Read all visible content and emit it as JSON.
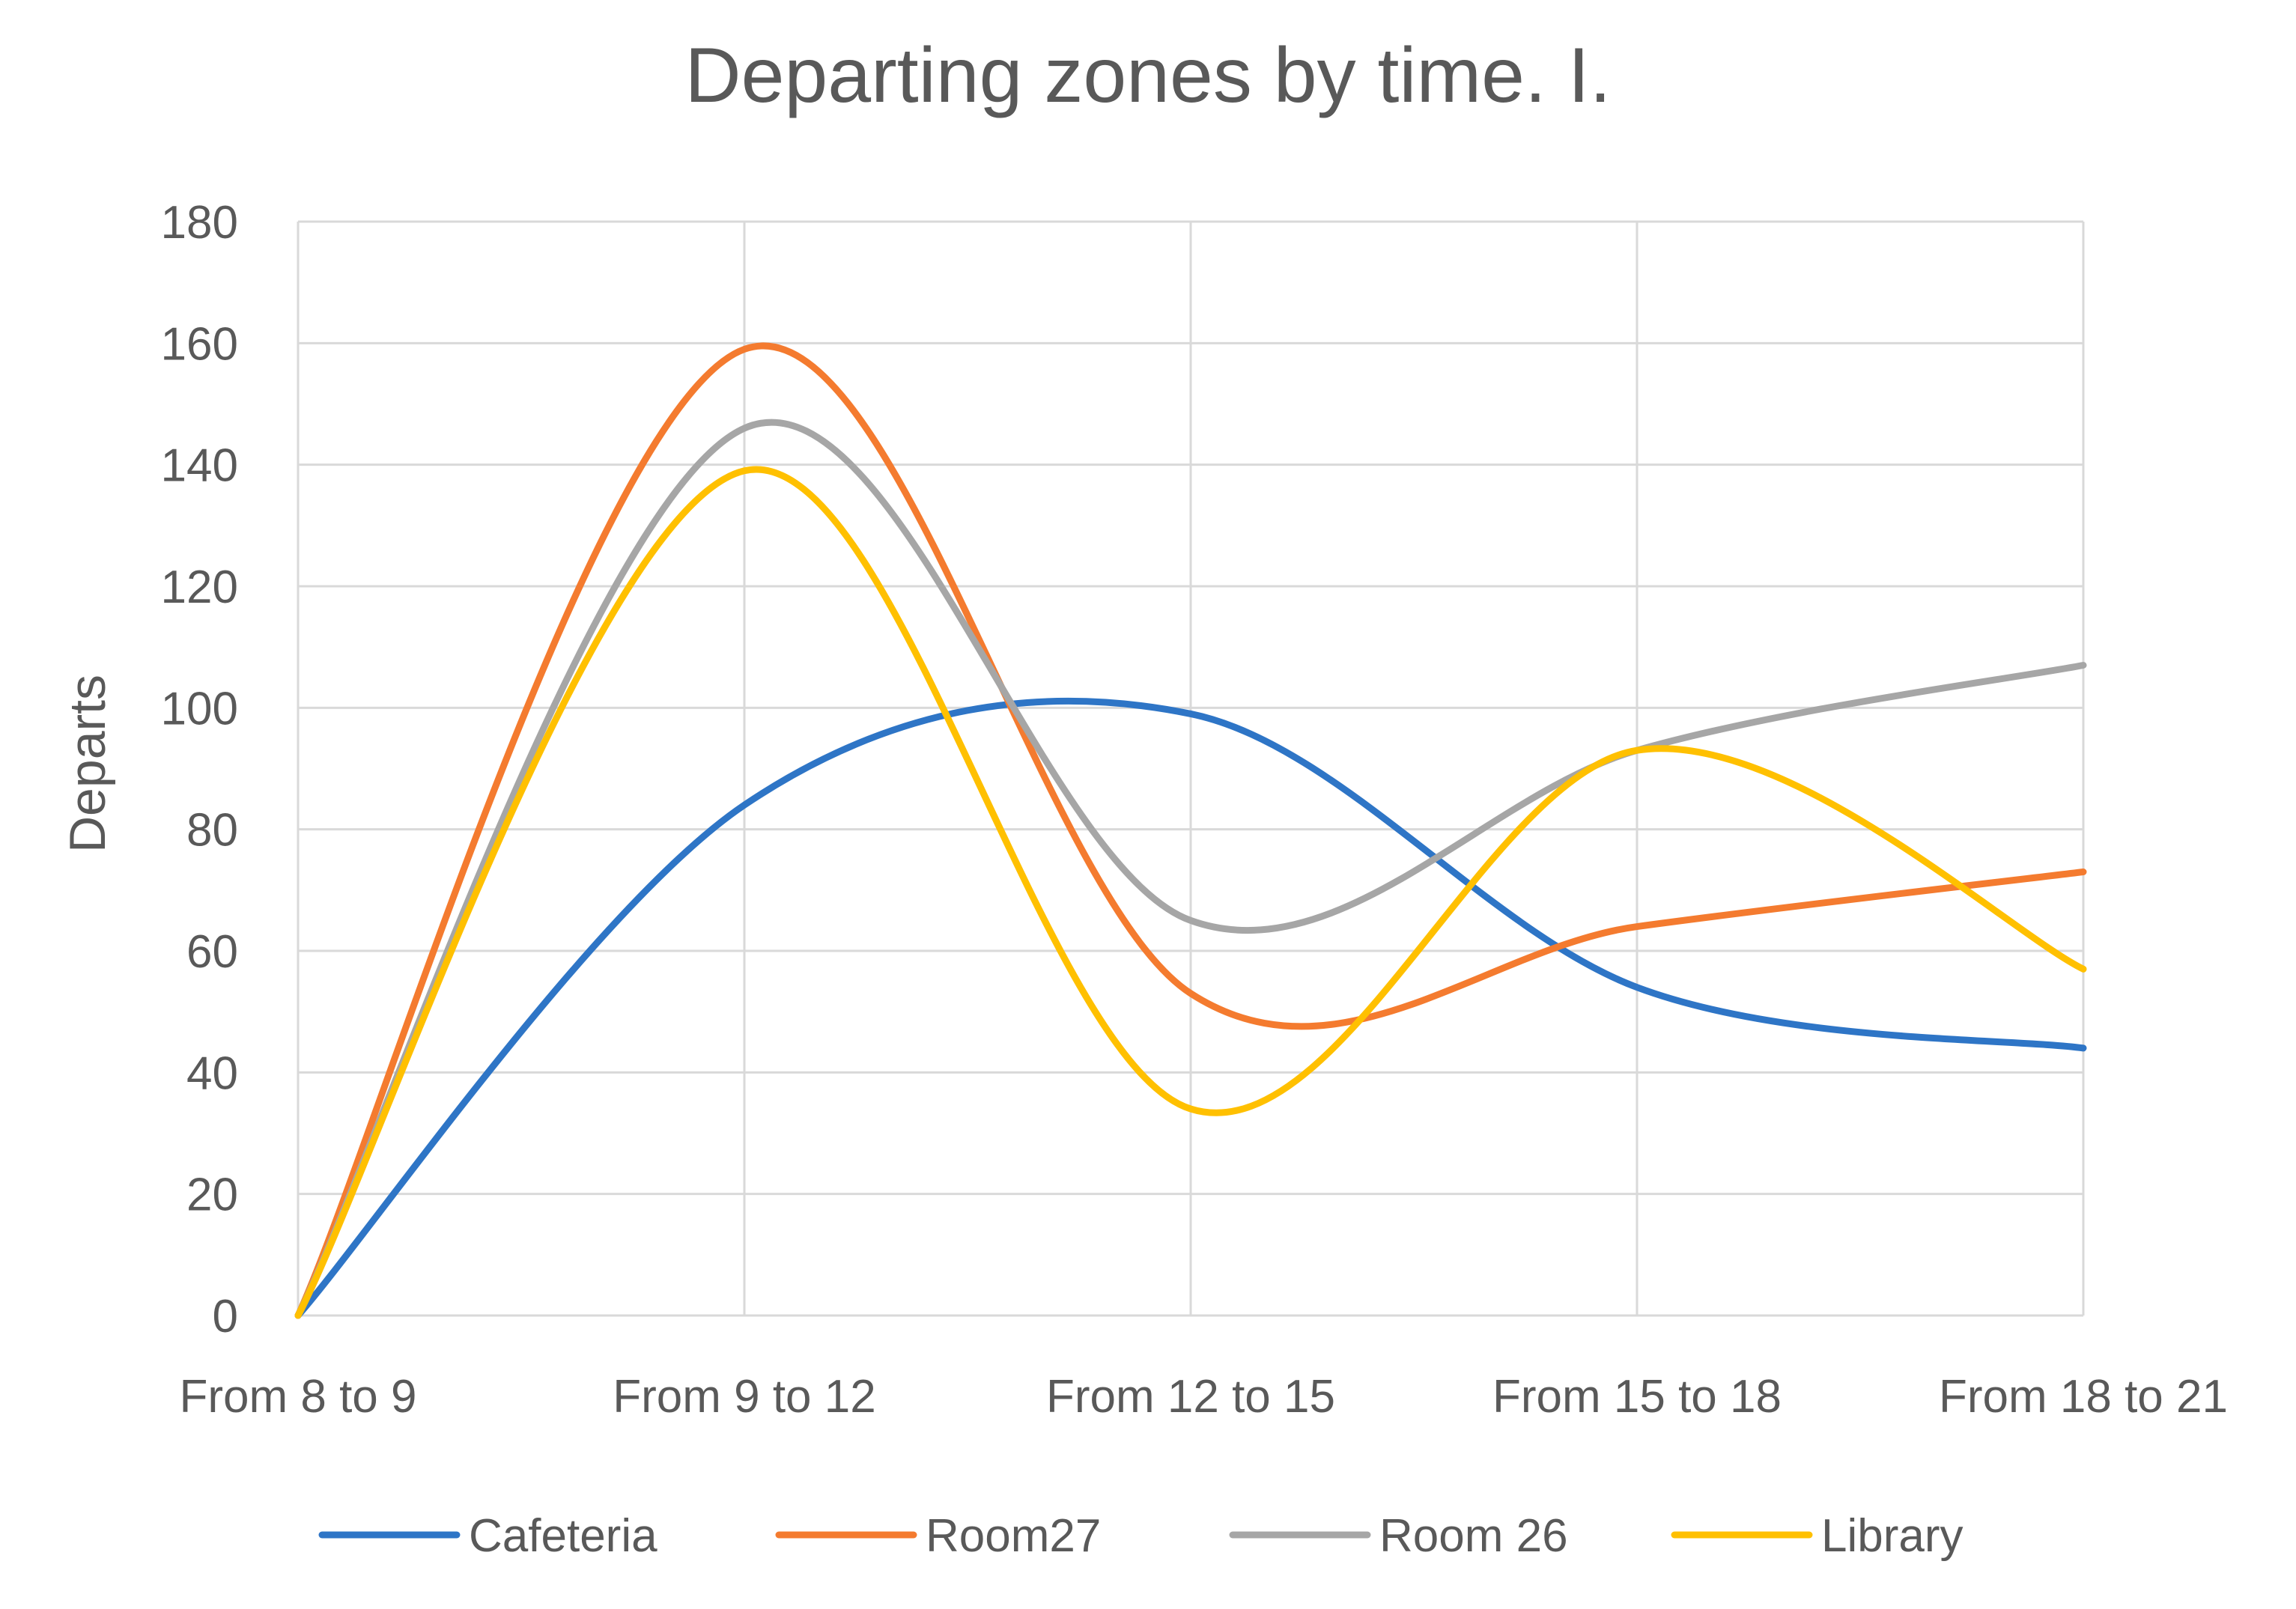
{
  "chart_data": {
    "type": "line",
    "title": "Departing zones by time. I.",
    "xlabel": "",
    "ylabel": "Departs",
    "categories": [
      "From 8 to 9",
      "From 9 to 12",
      "From 12 to 15",
      "From 15 to 18",
      "From 18 to 21"
    ],
    "ylim": [
      0,
      180
    ],
    "yticks": [
      "0",
      "20",
      "40",
      "60",
      "80",
      "100",
      "120",
      "140",
      "160",
      "180"
    ],
    "grid": true,
    "smooth": true,
    "legend_position": "bottom",
    "series": [
      {
        "name": "Cafeteria",
        "color": "#2E75C6",
        "values": [
          0,
          84,
          99,
          54,
          44
        ]
      },
      {
        "name": "Room27",
        "color": "#F47B2F",
        "values": [
          0,
          159,
          53,
          64,
          73
        ]
      },
      {
        "name": "Room 26",
        "color": "#A6A6A6",
        "values": [
          0,
          146,
          65,
          93,
          107
        ]
      },
      {
        "name": "Library",
        "color": "#FFC000",
        "values": [
          0,
          139,
          34,
          93,
          57
        ]
      }
    ]
  }
}
